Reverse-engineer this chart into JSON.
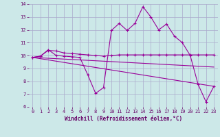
{
  "xlabel": "Windchill (Refroidissement éolien,°C)",
  "bg_color": "#cce8e8",
  "grid_color": "#aaaacc",
  "line_color": "#990099",
  "xlim": [
    -0.5,
    23.5
  ],
  "ylim": [
    6,
    14
  ],
  "yticks": [
    6,
    7,
    8,
    9,
    10,
    11,
    12,
    13,
    14
  ],
  "xticks": [
    0,
    1,
    2,
    3,
    4,
    5,
    6,
    7,
    8,
    9,
    10,
    11,
    12,
    13,
    14,
    15,
    16,
    17,
    18,
    19,
    20,
    21,
    22,
    23
  ],
  "line1_x": [
    0,
    1,
    2,
    3,
    4,
    5,
    6,
    7,
    8,
    9,
    10,
    11,
    12,
    13,
    14,
    15,
    16,
    17,
    18,
    19,
    20,
    21,
    22,
    23
  ],
  "line1_y": [
    9.85,
    9.95,
    10.45,
    10.0,
    9.95,
    9.9,
    9.85,
    8.5,
    7.05,
    7.5,
    11.95,
    12.5,
    11.95,
    12.5,
    13.8,
    13.0,
    12.0,
    12.45,
    11.5,
    11.0,
    10.0,
    7.75,
    6.4,
    7.6
  ],
  "line2_x": [
    0,
    1,
    2,
    3,
    4,
    5,
    6,
    7,
    8,
    9,
    10,
    11,
    12,
    13,
    14,
    15,
    16,
    17,
    18,
    19,
    20,
    21,
    22,
    23
  ],
  "line2_y": [
    9.85,
    9.95,
    10.4,
    10.35,
    10.2,
    10.15,
    10.1,
    10.05,
    10.0,
    9.95,
    10.0,
    10.05,
    10.05,
    10.05,
    10.05,
    10.05,
    10.05,
    10.05,
    10.05,
    10.05,
    10.05,
    10.05,
    10.05,
    10.05
  ],
  "line3_x": [
    0,
    23
  ],
  "line3_y": [
    9.85,
    9.1
  ],
  "line4_x": [
    0,
    23
  ],
  "line4_y": [
    9.85,
    7.6
  ]
}
